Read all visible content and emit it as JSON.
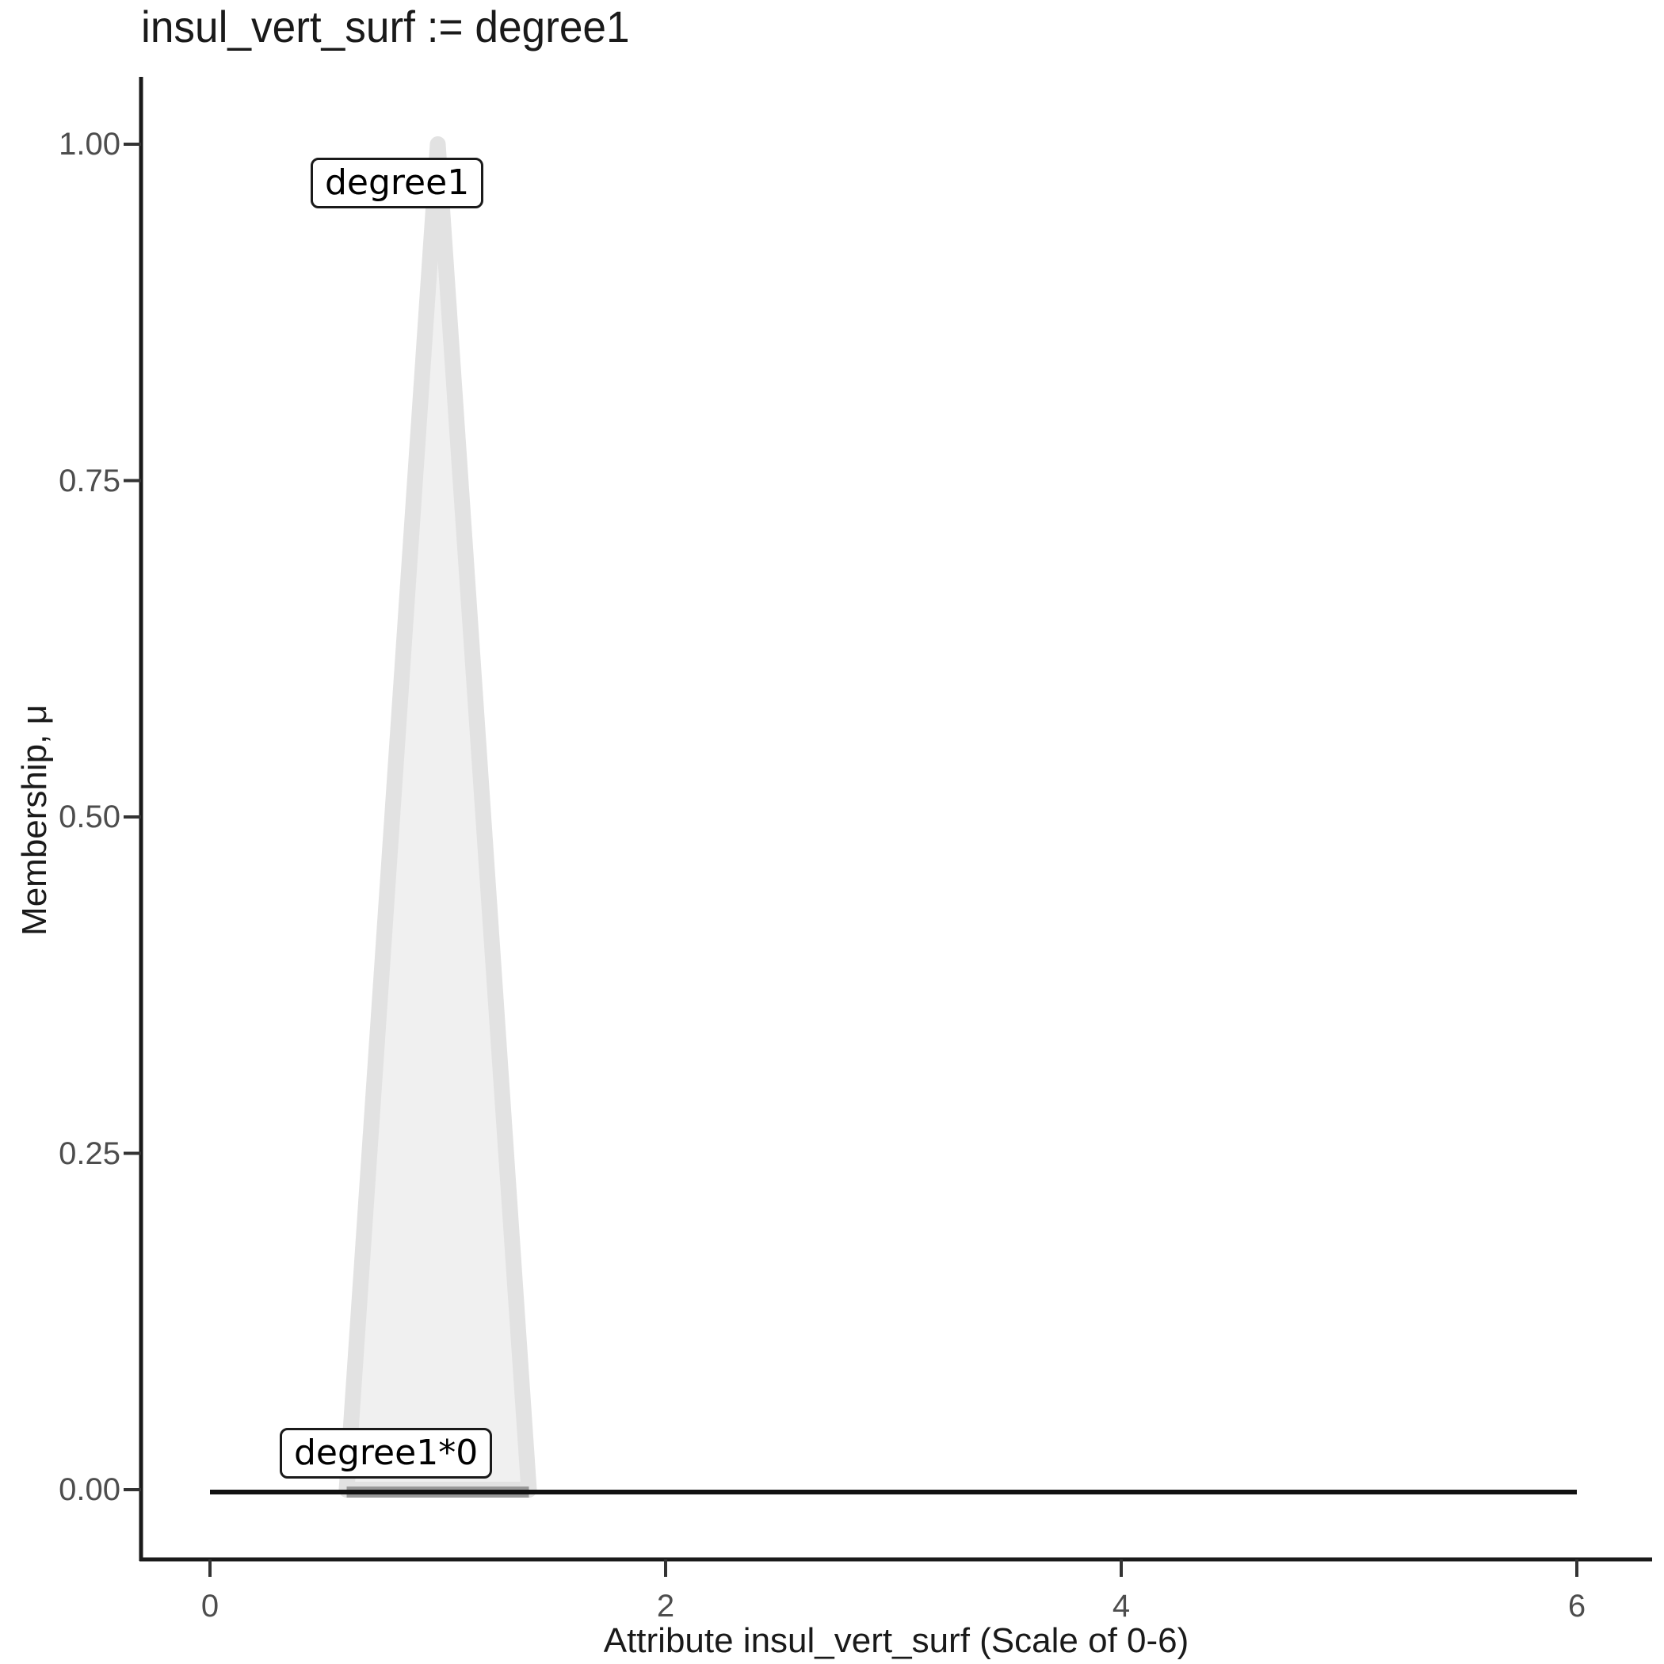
{
  "title": "insul_vert_surf := degree1",
  "chart_data": {
    "type": "area",
    "title": "insul_vert_surf := degree1",
    "xlabel": "Attribute insul_vert_surf (Scale of 0-6)",
    "ylabel": "Membership, μ",
    "xlim": [
      0,
      6
    ],
    "ylim": [
      0,
      1
    ],
    "grid": false,
    "legend_position": "none",
    "xticks": {
      "values": [
        0,
        2,
        4,
        6
      ],
      "labels": [
        "0",
        "2",
        "4",
        "6"
      ]
    },
    "yticks": {
      "values": [
        1,
        0.75,
        0.5,
        0.25,
        0
      ],
      "labels": [
        "1.00",
        "0.75",
        "0.50",
        "0.25",
        "0.00"
      ]
    },
    "series": [
      {
        "name": "degree1",
        "kind": "triangular-membership-function",
        "points": [
          [
            0.6,
            0
          ],
          [
            1.0,
            1.0
          ],
          [
            1.4,
            0
          ]
        ],
        "fill": "#f0f0f0",
        "stroke": "#e2e2e2",
        "stroke_width": 20
      },
      {
        "name": "degree1*0",
        "kind": "line",
        "points": [
          [
            0.6,
            0
          ],
          [
            1.4,
            0
          ]
        ],
        "stroke": "#999999",
        "stroke_width": 14
      },
      {
        "name": "zero-baseline",
        "kind": "line",
        "points": [
          [
            0,
            0
          ],
          [
            6,
            0
          ]
        ],
        "stroke": "#111111",
        "stroke_width": 6
      }
    ],
    "annotations": [
      {
        "text": "degree1",
        "anchor_x": 1.0,
        "anchor_y": 0.97,
        "style": "boxed-label"
      },
      {
        "text": "degree1*0",
        "anchor_x": 0.77,
        "anchor_y": 0.01,
        "style": "boxed-label"
      }
    ]
  },
  "axes_text": {
    "y_title": "Membership, μ",
    "x_title": "Attribute insul_vert_surf (Scale of 0-6)"
  },
  "colors": {
    "axis_line": "#1a1a1a",
    "tick_mark": "#333333",
    "tick_label": "#4d4d4d",
    "title_text": "#1a1a1a",
    "background": "#ffffff"
  }
}
